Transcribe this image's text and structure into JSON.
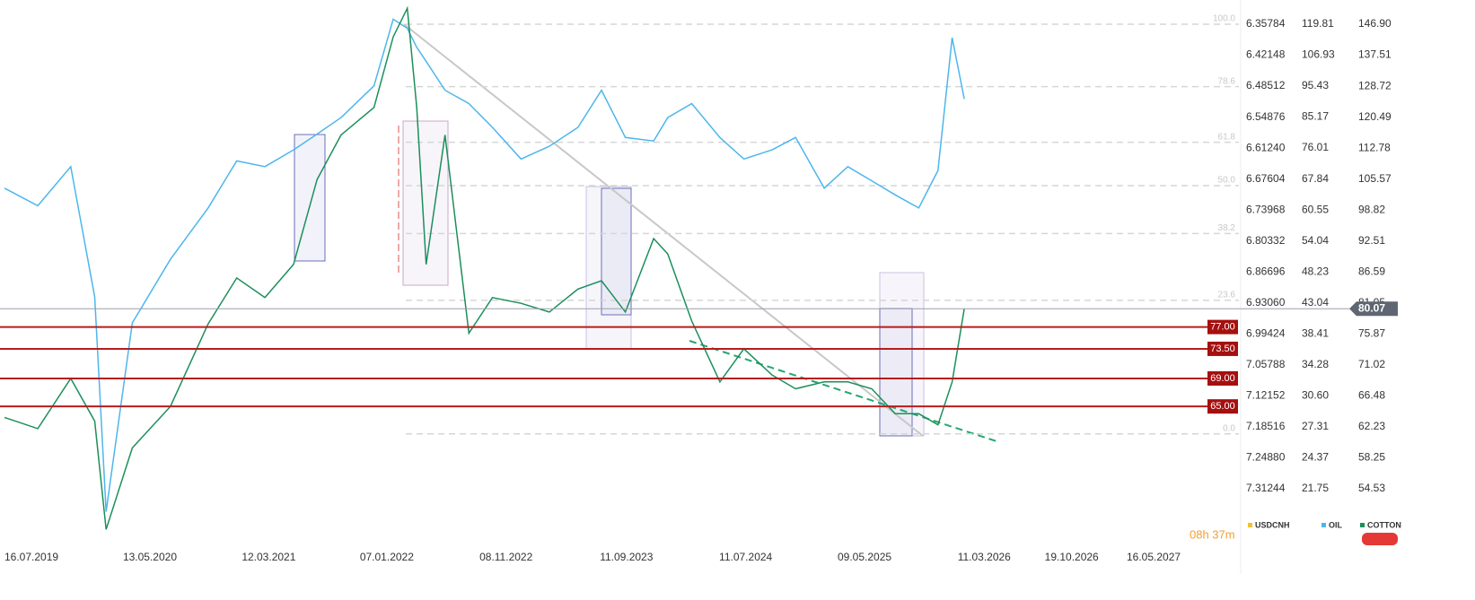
{
  "chart_data": {
    "type": "line",
    "x": [
      "16.07.2019",
      "09.10.2019",
      "01.01.2020",
      "02.03.2020",
      "31.03.2020",
      "06.06.2020",
      "11.09.2020",
      "16.12.2020",
      "27.02.2021",
      "10.05.2021",
      "22.07.2021",
      "20.09.2021",
      "20.11.2021",
      "12.02.2022",
      "02.04.2022",
      "08.05.2022",
      "01.06.2022",
      "25.06.2022",
      "12.08.2022",
      "12.10.2022",
      "11.12.2022",
      "22.02.2023",
      "05.05.2023",
      "17.07.2023",
      "15.09.2023",
      "15.11.2023",
      "26.01.2024",
      "02.03.2024",
      "02.05.2024",
      "13.07.2024",
      "12.09.2024",
      "23.11.2024",
      "22.01.2025",
      "05.04.2025",
      "04.06.2025",
      "04.08.2025",
      "03.10.2025",
      "02.12.2025",
      "20.01.2026",
      "25.02.2026",
      "28.03.2026"
    ],
    "xticks": [
      "16.07.2019",
      "13.05.2020",
      "12.03.2021",
      "07.01.2022",
      "08.11.2022",
      "11.09.2023",
      "11.07.2024",
      "09.05.2025",
      "11.03.2026",
      "19.10.2026",
      "16.05.2027"
    ],
    "yscale": "log",
    "ylim": [
      48.15,
      154.7
    ],
    "yticks": [
      {
        "value": 146.9,
        "label": "146.90"
      },
      137.51,
      128.72,
      120.49,
      112.78,
      105.57,
      98.82,
      92.51,
      86.59,
      81.05,
      75.87,
      71.02,
      66.48,
      62.23,
      58.25,
      54.53
    ],
    "y2scale": "log",
    "y2lim": [
      17.56,
      130.9
    ],
    "y2ticks": [
      119.81,
      106.93,
      95.43,
      85.17,
      76.01,
      67.84,
      60.55,
      54.04,
      48.23,
      43.04,
      38.41,
      34.28,
      {
        "value": 30.6,
        "label": "30.60"
      },
      27.31,
      24.37,
      21.75
    ],
    "y3lim": [
      7.4322,
      6.3081
    ],
    "y3ticks": [
      6.35784,
      6.42148,
      6.48512,
      6.54876,
      {
        "value": 6.6124,
        "label": "6.61240"
      },
      6.67604,
      6.73968,
      6.80332,
      6.86696,
      {
        "value": 6.9306,
        "label": "6.93060"
      },
      6.99424,
      7.05788,
      7.12152,
      7.18516,
      {
        "value": 7.2488,
        "label": "7.24880"
      },
      7.31244
    ],
    "series": [
      {
        "name": "USDCNH",
        "color": "#f2c12e",
        "axis": "y3",
        "values": [
          null,
          null,
          null,
          null,
          null,
          null,
          null,
          null,
          null,
          null,
          null,
          null,
          null,
          null,
          null,
          null,
          null,
          null,
          null,
          null,
          null,
          null,
          null,
          null,
          null,
          null,
          null,
          null,
          null,
          null,
          null,
          null,
          null,
          null,
          null,
          null,
          null,
          null,
          null,
          null,
          null
        ]
      },
      {
        "name": "OIL",
        "color": "#4db6ec",
        "axis": "y2",
        "values": [
          65.6,
          61.5,
          71,
          44,
          20,
          40,
          50.5,
          61,
          72.5,
          71,
          75.5,
          80,
          85,
          95.5,
          122,
          118,
          110,
          104.5,
          94,
          89.5,
          82,
          73,
          76.5,
          82,
          94,
          79,
          78,
          85,
          89.5,
          79,
          73,
          75.5,
          79,
          65.6,
          71,
          67.4,
          64,
          61,
          70,
          114,
          91
        ]
      },
      {
        "name": "COTTON",
        "color": "#1b8f5a",
        "values": [
          63.5,
          62,
          69,
          63,
          50,
          59.5,
          65,
          77.5,
          85.5,
          82,
          88,
          105.5,
          116,
          123,
          143,
          152,
          123,
          88,
          116,
          76,
          82,
          81,
          79.5,
          83.5,
          85,
          79.5,
          93,
          90,
          78,
          68.5,
          73.5,
          69.5,
          67.5,
          68.5,
          68.5,
          67.5,
          64,
          64,
          62.5,
          68.5,
          80.07
        ]
      }
    ],
    "levels": [
      {
        "value": 77,
        "label": "77.00"
      },
      {
        "value": 73.5,
        "label": "73.50"
      },
      {
        "value": 69,
        "label": "69.00"
      },
      {
        "value": 65,
        "label": "65.00"
      }
    ],
    "last_price": 80.07,
    "fib": {
      "range": [
        61.3,
        146.9
      ],
      "levels": [
        {
          "value": 100,
          "label": "100.0"
        },
        78.6,
        61.8,
        {
          "value": 50,
          "label": "50.0"
        },
        38.2,
        23.6,
        {
          "value": 0,
          "label": "0.0"
        }
      ]
    },
    "timer": "08h 37m"
  }
}
